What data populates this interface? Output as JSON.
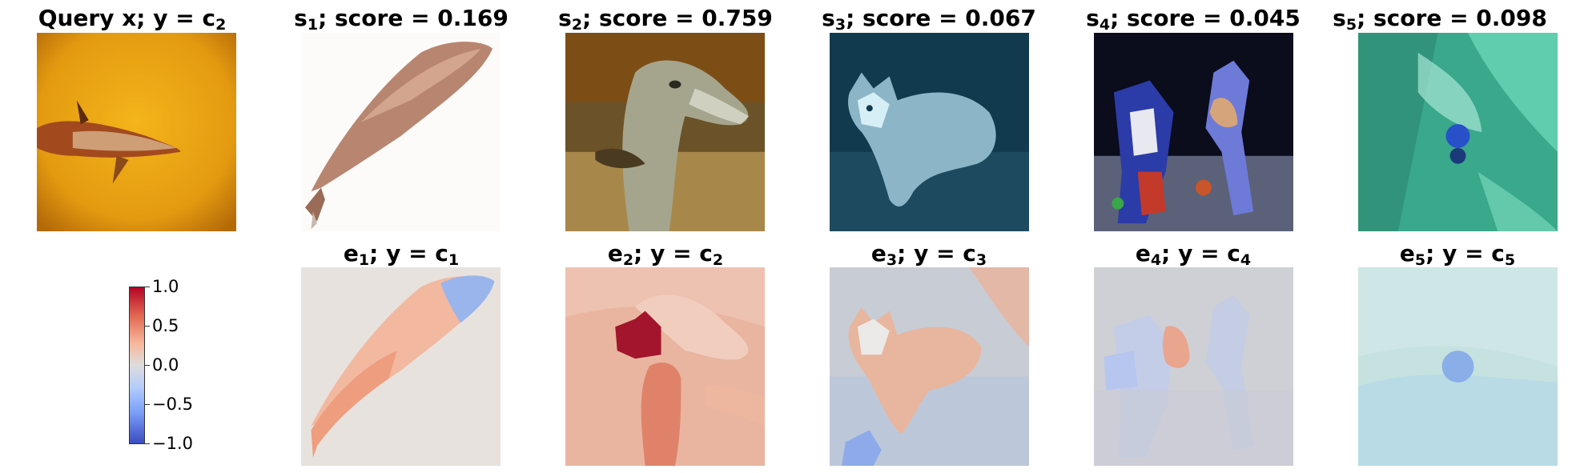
{
  "top_row": [
    {
      "symbol": "Query x",
      "sub": "",
      "label": "y = c",
      "label_sub": "2"
    },
    {
      "symbol": "s",
      "sub": "1",
      "label": "score = 0.169",
      "label_sub": ""
    },
    {
      "symbol": "s",
      "sub": "2",
      "label": "score = 0.759",
      "label_sub": ""
    },
    {
      "symbol": "s",
      "sub": "3",
      "label": "score = 0.067",
      "label_sub": ""
    },
    {
      "symbol": "s",
      "sub": "4",
      "label": "score = 0.045",
      "label_sub": ""
    },
    {
      "symbol": "s",
      "sub": "5",
      "label": "score = 0.098",
      "label_sub": ""
    }
  ],
  "bottom_row": [
    {
      "symbol": "e",
      "sub": "1",
      "label": "y = c",
      "label_sub": "1"
    },
    {
      "symbol": "e",
      "sub": "2",
      "label": "y = c",
      "label_sub": "2"
    },
    {
      "symbol": "e",
      "sub": "3",
      "label": "y = c",
      "label_sub": "3"
    },
    {
      "symbol": "e",
      "sub": "4",
      "label": "y = c",
      "label_sub": "4"
    },
    {
      "symbol": "e",
      "sub": "5",
      "label": "y = c",
      "label_sub": "5"
    }
  ],
  "colorbar": {
    "ticks": [
      "1.0",
      "0.5",
      "0.0",
      "−0.5",
      "−1.0"
    ],
    "colors": {
      "max": "#b40426",
      "mid": "#dddcdc",
      "min": "#3b4cc0"
    }
  }
}
